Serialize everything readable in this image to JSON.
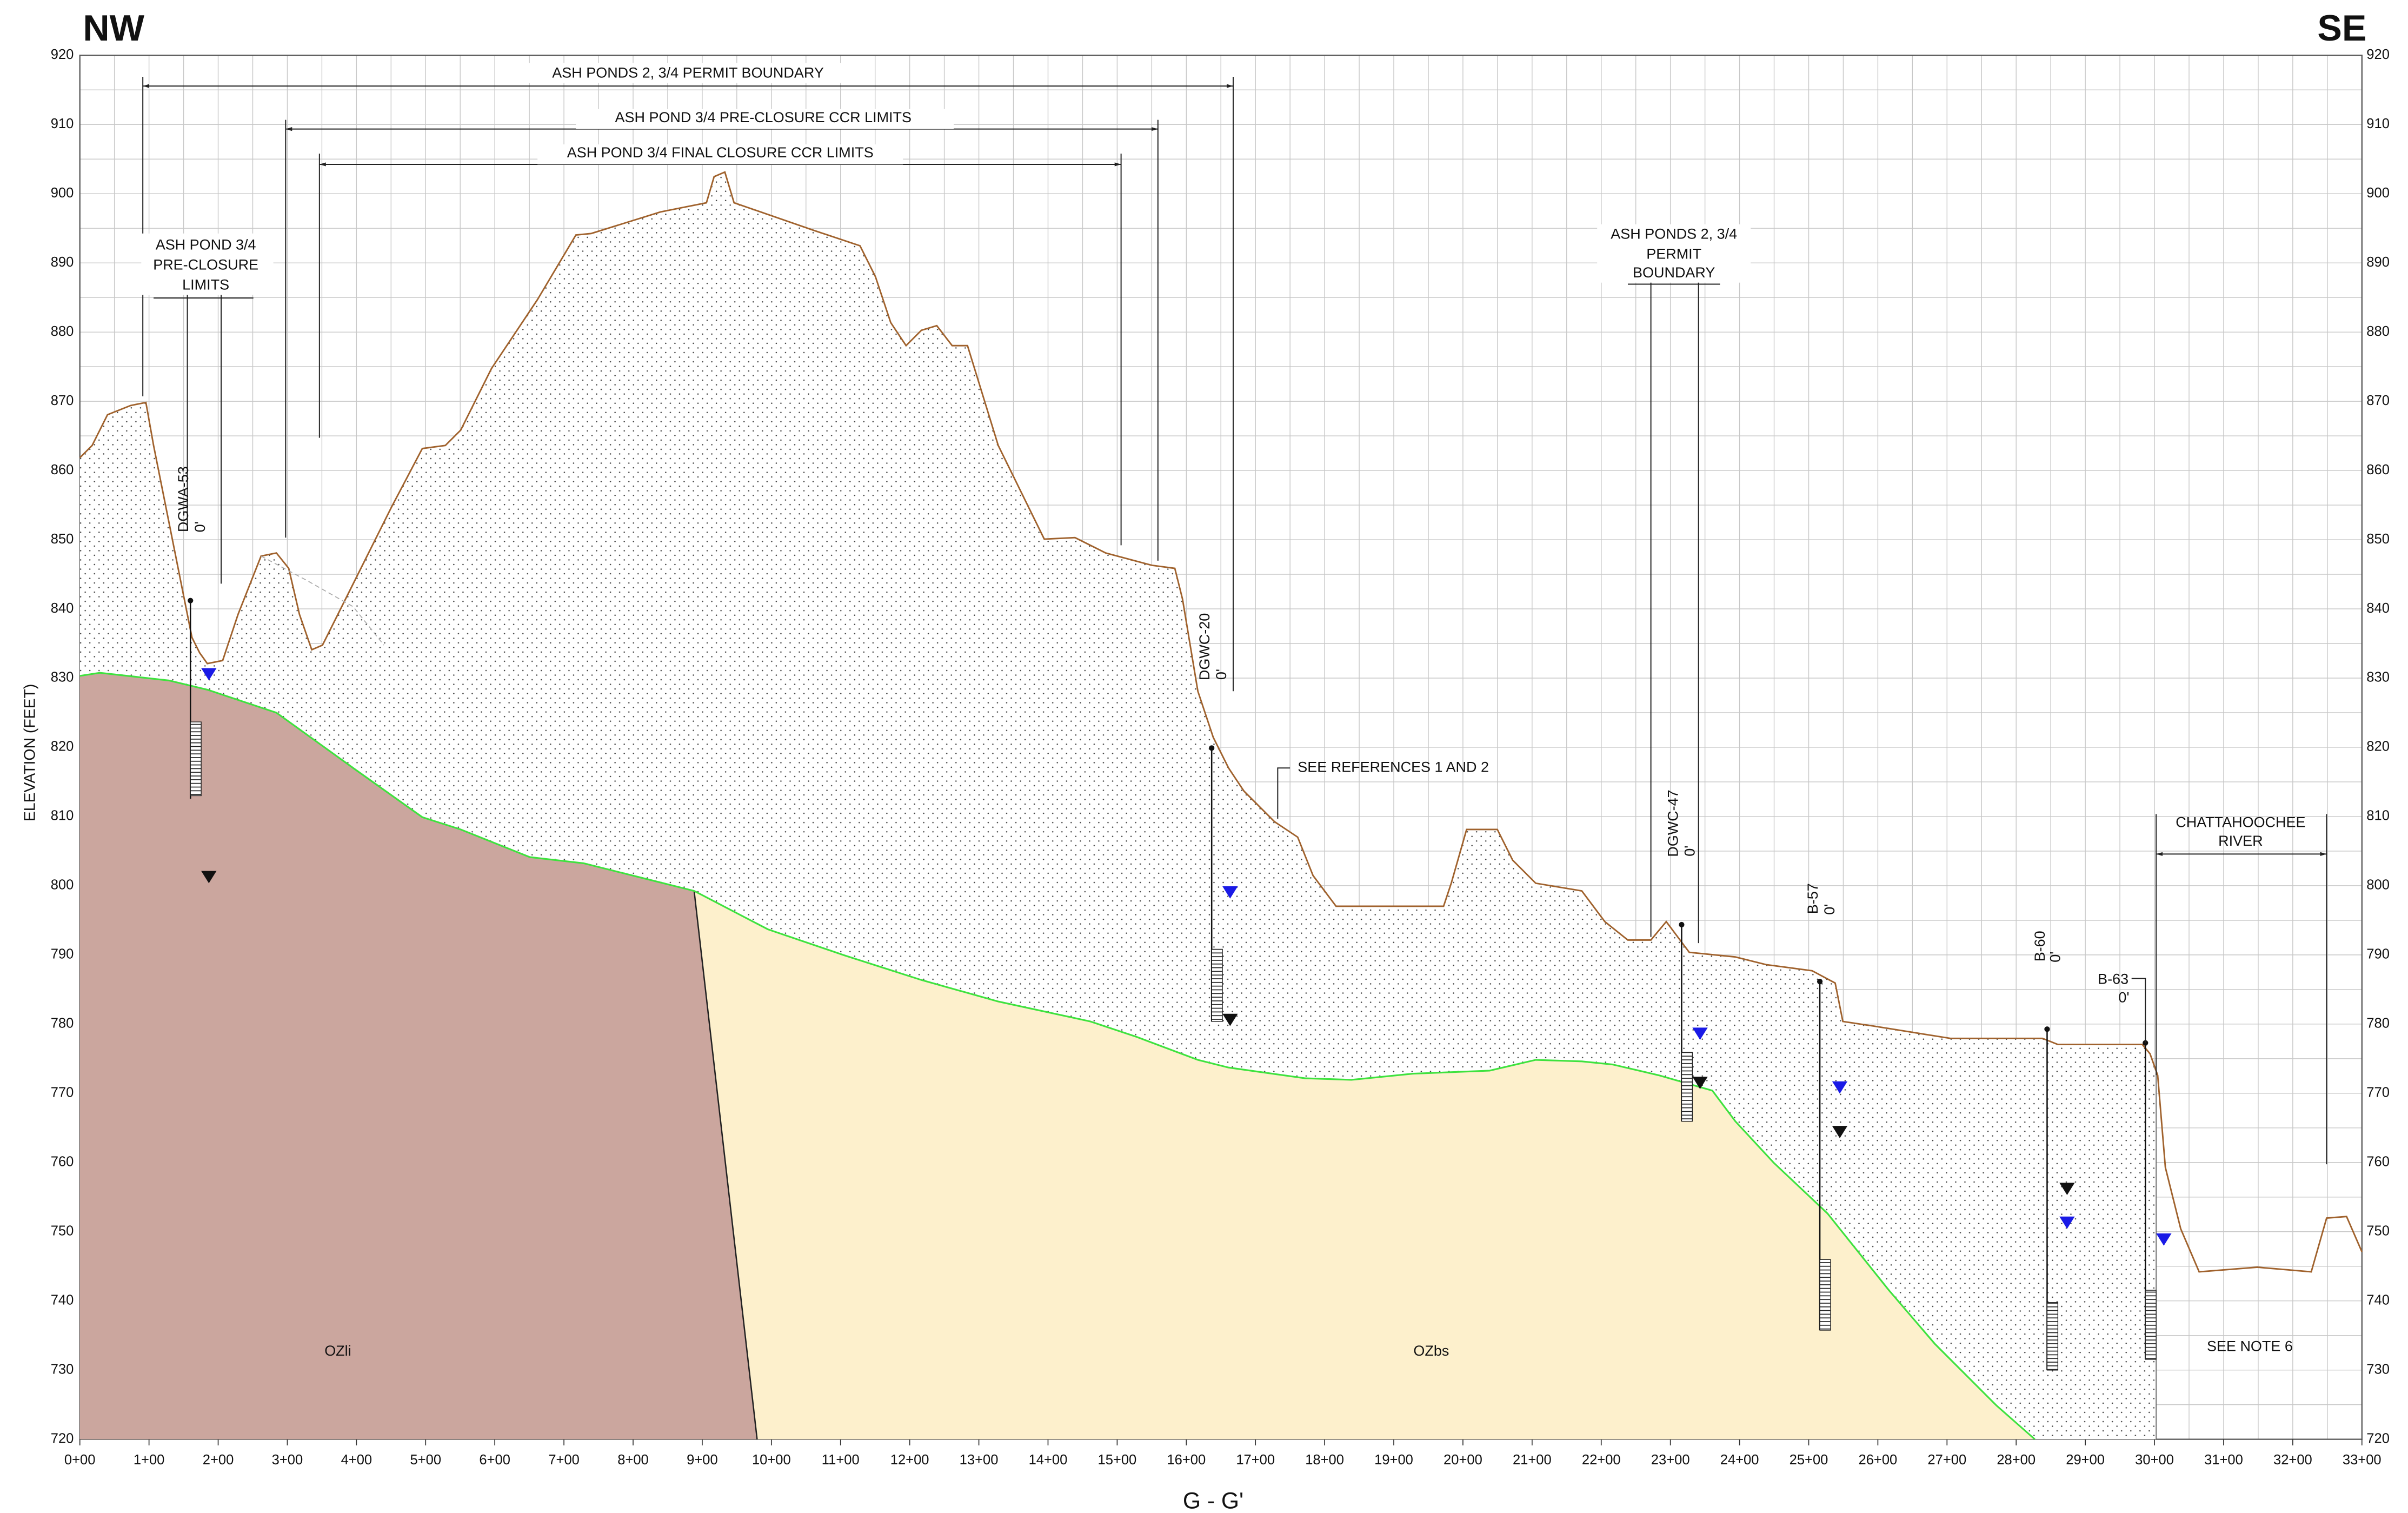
{
  "header": {
    "left": "NW",
    "right": "SE"
  },
  "axes": {
    "y_label": "ELEVATION (FEET)",
    "y_ticks": [
      720,
      730,
      740,
      750,
      760,
      770,
      780,
      790,
      800,
      810,
      820,
      830,
      840,
      850,
      860,
      870,
      880,
      890,
      900,
      910,
      920
    ],
    "x_ticks": [
      "0+00",
      "1+00",
      "2+00",
      "3+00",
      "4+00",
      "5+00",
      "6+00",
      "7+00",
      "8+00",
      "9+00",
      "10+00",
      "11+00",
      "12+00",
      "13+00",
      "14+00",
      "15+00",
      "16+00",
      "17+00",
      "18+00",
      "19+00",
      "20+00",
      "21+00",
      "22+00",
      "23+00",
      "24+00",
      "25+00",
      "26+00",
      "27+00",
      "28+00",
      "29+00",
      "30+00",
      "31+00",
      "32+00",
      "33+00"
    ],
    "section": "G - G'"
  },
  "annotations": {
    "permit_boundary": "ASH PONDS 2, 3/4  PERMIT BOUNDARY",
    "pre_closure": "ASH POND 3/4 PRE-CLOSURE CCR LIMITS",
    "final_closure": "ASH POND 3/4 FINAL CLOSURE CCR LIMITS",
    "pre_closure_small": [
      "ASH POND 3/4",
      "PRE-CLOSURE",
      "LIMITS"
    ],
    "permit_boundary_right": [
      "ASH PONDS 2, 3/4",
      "PERMIT",
      "BOUNDARY"
    ],
    "references": "SEE REFERENCES 1 AND 2",
    "river": [
      "CHATTAHOOCHEE",
      "RIVER"
    ],
    "note": "SEE NOTE 6"
  },
  "wells": [
    {
      "name": "DGWA-53",
      "depth": "0'"
    },
    {
      "name": "DGWC-20",
      "depth": "0'"
    },
    {
      "name": "DGWC-47",
      "depth": "0'"
    },
    {
      "name": "B-57",
      "depth": "0'"
    },
    {
      "name": "B-60",
      "depth": "0'"
    },
    {
      "name": "B-63",
      "depth": "0'"
    }
  ],
  "units": [
    "OZli",
    "OZbs"
  ]
}
